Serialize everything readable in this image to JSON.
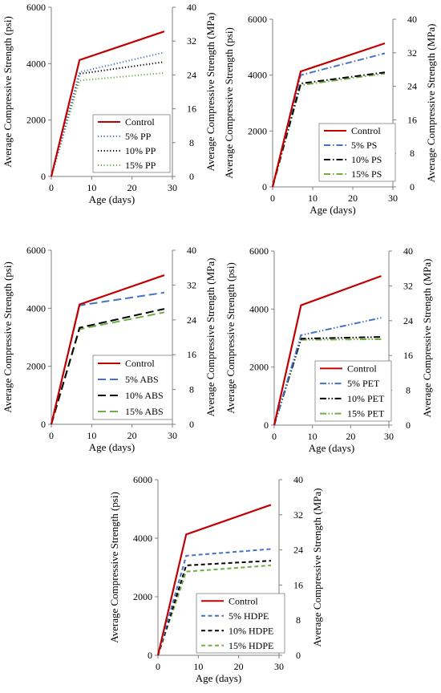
{
  "chart_data": [
    {
      "type": "line",
      "xlabel": "Age (days)",
      "ylabel": "Average Compressive Strength (psi)",
      "y2label": "Average Compressive Strength (MPa)",
      "xlim": [
        0,
        30
      ],
      "ylim": [
        0,
        6000
      ],
      "y2lim": [
        0,
        40
      ],
      "xticks": [
        0,
        10,
        20,
        30
      ],
      "yticks": [
        0,
        2000,
        4000,
        6000
      ],
      "y2ticks": [
        0,
        8,
        16,
        24,
        32,
        40
      ],
      "grid": false,
      "legend_position": "bottom-right",
      "x": [
        0,
        7,
        28
      ],
      "series": [
        {
          "name": "Control",
          "values": [
            0,
            4130,
            5140
          ],
          "color": "#c00000",
          "dash": "solid"
        },
        {
          "name": "5% PP",
          "values": [
            0,
            3700,
            4400
          ],
          "color": "#4472c4",
          "dash": "dotted"
        },
        {
          "name": "10% PP",
          "values": [
            0,
            3640,
            4060
          ],
          "color": "#000000",
          "dash": "dotted"
        },
        {
          "name": "15% PP",
          "values": [
            0,
            3400,
            3670
          ],
          "color": "#70ad47",
          "dash": "dotted"
        }
      ]
    },
    {
      "type": "line",
      "xlabel": "Age (days)",
      "ylabel": "Average Compressive Strength (psi)",
      "y2label": "Average Compressive Strength (MPa)",
      "xlim": [
        0,
        30
      ],
      "ylim": [
        0,
        6000
      ],
      "y2lim": [
        0,
        40
      ],
      "xticks": [
        0,
        10,
        20,
        30
      ],
      "yticks": [
        0,
        2000,
        4000,
        6000
      ],
      "y2ticks": [
        0,
        8,
        16,
        24,
        32,
        40
      ],
      "grid": false,
      "legend_position": "bottom-right",
      "x": [
        0,
        7,
        28
      ],
      "series": [
        {
          "name": "Control",
          "values": [
            0,
            4130,
            5140
          ],
          "color": "#c00000",
          "dash": "solid"
        },
        {
          "name": "5% PS",
          "values": [
            0,
            4000,
            4780
          ],
          "color": "#4472c4",
          "dash": "dashdot"
        },
        {
          "name": "10% PS",
          "values": [
            0,
            3700,
            4100
          ],
          "color": "#000000",
          "dash": "dashdot"
        },
        {
          "name": "15% PS",
          "values": [
            0,
            3640,
            4060
          ],
          "color": "#70ad47",
          "dash": "dashdot"
        }
      ]
    },
    {
      "type": "line",
      "xlabel": "Age (days)",
      "ylabel": "Average Compressive Strength (psi)",
      "y2label": "Average Compressive Strength (MPa)",
      "xlim": [
        0,
        30
      ],
      "ylim": [
        0,
        6000
      ],
      "y2lim": [
        0,
        40
      ],
      "xticks": [
        0,
        10,
        20,
        30
      ],
      "yticks": [
        0,
        2000,
        4000,
        6000
      ],
      "y2ticks": [
        0,
        8,
        16,
        24,
        32,
        40
      ],
      "grid": false,
      "legend_position": "bottom-right",
      "x": [
        0,
        7,
        28
      ],
      "series": [
        {
          "name": "Control",
          "values": [
            0,
            4130,
            5140
          ],
          "color": "#c00000",
          "dash": "solid"
        },
        {
          "name": "5% ABS",
          "values": [
            0,
            4100,
            4540
          ],
          "color": "#4472c4",
          "dash": "longdash"
        },
        {
          "name": "10% ABS",
          "values": [
            0,
            3330,
            3980
          ],
          "color": "#000000",
          "dash": "longdash"
        },
        {
          "name": "15% ABS",
          "values": [
            0,
            3280,
            3860
          ],
          "color": "#70ad47",
          "dash": "longdash"
        }
      ]
    },
    {
      "type": "line",
      "xlabel": "Age (days)",
      "ylabel": "Average Compressive Strength (psi)",
      "y2label": "Average Compressive Strength (MPa)",
      "xlim": [
        0,
        30
      ],
      "ylim": [
        0,
        6000
      ],
      "y2lim": [
        0,
        40
      ],
      "xticks": [
        0,
        10,
        20,
        30
      ],
      "yticks": [
        0,
        2000,
        4000,
        6000
      ],
      "y2ticks": [
        0,
        8,
        16,
        24,
        32,
        40
      ],
      "grid": false,
      "legend_position": "bottom-right",
      "x": [
        0,
        7,
        28
      ],
      "series": [
        {
          "name": "Control",
          "values": [
            0,
            4130,
            5140
          ],
          "color": "#c00000",
          "dash": "solid"
        },
        {
          "name": "5% PET",
          "values": [
            0,
            3100,
            3700
          ],
          "color": "#4472c4",
          "dash": "dashdotdot"
        },
        {
          "name": "10% PET",
          "values": [
            0,
            2980,
            3040
          ],
          "color": "#000000",
          "dash": "dashdotdot"
        },
        {
          "name": "15% PET",
          "values": [
            0,
            2940,
            2960
          ],
          "color": "#70ad47",
          "dash": "dashdotdot"
        }
      ]
    },
    {
      "type": "line",
      "xlabel": "Age (days)",
      "ylabel": "Average Compressive Strength (psi)",
      "y2label": "Average Compressive Strength (MPa)",
      "xlim": [
        0,
        30
      ],
      "ylim": [
        0,
        6000
      ],
      "y2lim": [
        0,
        40
      ],
      "xticks": [
        0,
        10,
        20,
        30
      ],
      "yticks": [
        0,
        2000,
        4000,
        6000
      ],
      "y2ticks": [
        0,
        8,
        16,
        24,
        32,
        40
      ],
      "grid": false,
      "legend_position": "bottom-right",
      "x": [
        0,
        7,
        28
      ],
      "series": [
        {
          "name": "Control",
          "values": [
            0,
            4130,
            5140
          ],
          "color": "#c00000",
          "dash": "solid"
        },
        {
          "name": "5% HDPE",
          "values": [
            0,
            3400,
            3630
          ],
          "color": "#4472c4",
          "dash": "dashed"
        },
        {
          "name": "10% HDPE",
          "values": [
            0,
            3070,
            3230
          ],
          "color": "#000000",
          "dash": "dashed"
        },
        {
          "name": "15% HDPE",
          "values": [
            0,
            2860,
            3070
          ],
          "color": "#70ad47",
          "dash": "dashed"
        }
      ]
    }
  ]
}
